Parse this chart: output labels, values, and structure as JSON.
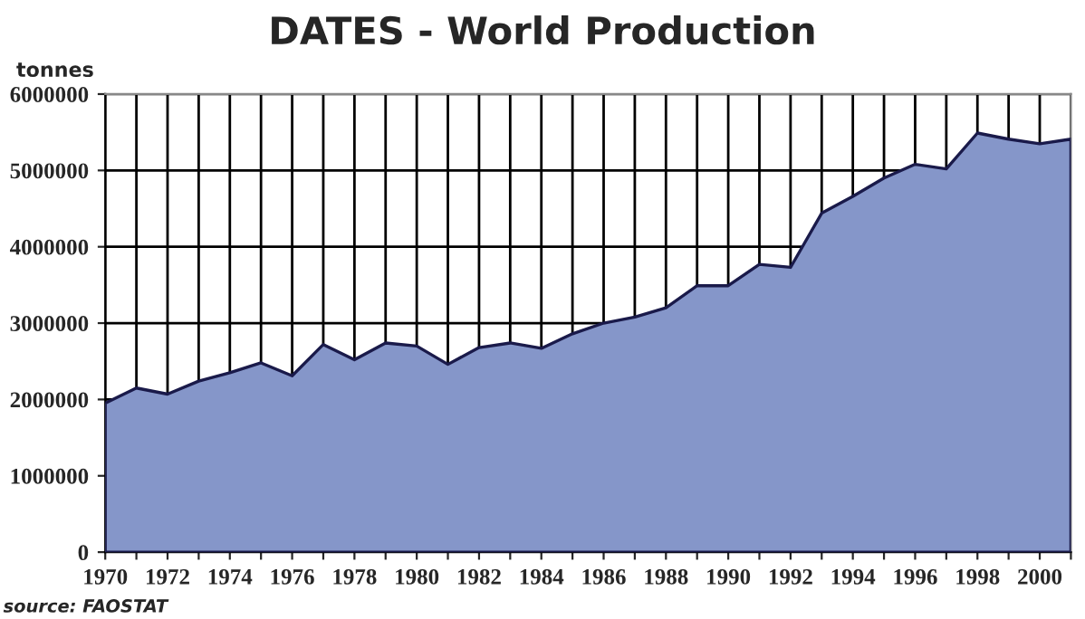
{
  "chart_data": {
    "type": "area",
    "title": "DATES - World Production",
    "ylabel": "tonnes",
    "annotations": [
      "source: FAOSTAT"
    ],
    "x": [
      1970,
      1971,
      1972,
      1973,
      1974,
      1975,
      1976,
      1977,
      1978,
      1979,
      1980,
      1981,
      1982,
      1983,
      1984,
      1985,
      1986,
      1987,
      1988,
      1989,
      1990,
      1991,
      1992,
      1993,
      1994,
      1995,
      1996,
      1997,
      1998,
      1999,
      2000,
      2001
    ],
    "series": [
      {
        "color": "#8596c9",
        "values": [
          1950000,
          2150000,
          2070000,
          2240000,
          2350000,
          2480000,
          2310000,
          2720000,
          2520000,
          2740000,
          2700000,
          2460000,
          2680000,
          2740000,
          2670000,
          2860000,
          3000000,
          3080000,
          3200000,
          3490000,
          3490000,
          3770000,
          3730000,
          4440000,
          4660000,
          4900000,
          5080000,
          5020000,
          5490000,
          5410000,
          5350000,
          5410000
        ]
      }
    ],
    "xlim": [
      1970,
      2001
    ],
    "xticks": [
      1970,
      {
        "value": 1971,
        "label": null
      },
      1972,
      {
        "value": 1973,
        "label": null
      },
      1974,
      {
        "value": 1975,
        "label": null
      },
      1976,
      {
        "value": 1977,
        "label": null
      },
      1978,
      {
        "value": 1979,
        "label": null
      },
      1980,
      {
        "value": 1981,
        "label": null
      },
      1982,
      {
        "value": 1983,
        "label": null
      },
      1984,
      {
        "value": 1985,
        "label": null
      },
      1986,
      {
        "value": 1987,
        "label": null
      },
      1988,
      {
        "value": 1989,
        "label": null
      },
      1990,
      {
        "value": 1991,
        "label": null
      },
      1992,
      {
        "value": 1993,
        "label": null
      },
      1994,
      {
        "value": 1995,
        "label": null
      },
      1996,
      {
        "value": 1997,
        "label": null
      },
      1998,
      {
        "value": 1999,
        "label": null
      },
      2000,
      {
        "value": 2001,
        "label": null
      }
    ],
    "ylim": [
      0,
      6000000
    ],
    "yticks": [
      0,
      1000000,
      2000000,
      3000000,
      4000000,
      5000000,
      6000000
    ],
    "grid": true,
    "legend": false
  }
}
